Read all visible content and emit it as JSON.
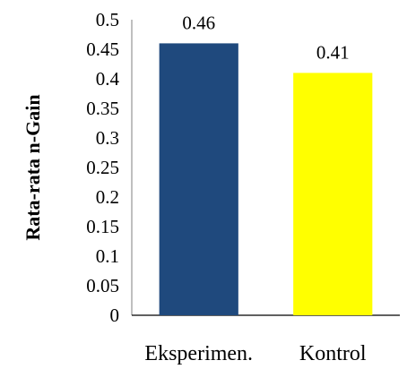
{
  "chart_data": {
    "type": "bar",
    "title": "",
    "xlabel": "",
    "ylabel": "Rata-rata n-Gain",
    "categories": [
      "Eksperimen.",
      "Kontrol"
    ],
    "values": [
      0.46,
      0.41
    ],
    "data_labels": [
      "0.46",
      "0.41"
    ],
    "bar_colors": [
      "#1f497d",
      "#ffff00"
    ],
    "ylim": [
      0,
      0.5
    ],
    "yticks": [
      0,
      0.05,
      0.1,
      0.15,
      0.2,
      0.25,
      0.3,
      0.35,
      0.4,
      0.45,
      0.5
    ],
    "ytick_labels": [
      "0",
      "0.05",
      "0.1",
      "0.15",
      "0.2",
      "0.25",
      "0.3",
      "0.35",
      "0.4",
      "0.45",
      "0.5"
    ],
    "grid": false,
    "legend": "none"
  }
}
